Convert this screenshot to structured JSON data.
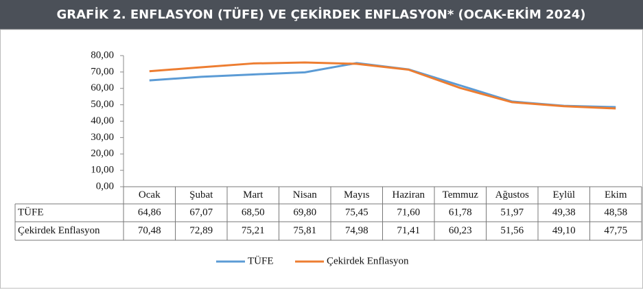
{
  "chart_data": {
    "type": "line",
    "title": "GRAFİK 2. ENFLASYON (TÜFE) VE ÇEKİRDEK ENFLASYON* (OCAK-EKİM 2024)",
    "categories": [
      "Ocak",
      "Şubat",
      "Mart",
      "Nisan",
      "Mayıs",
      "Haziran",
      "Temmuz",
      "Ağustos",
      "Eylül",
      "Ekim"
    ],
    "series": [
      {
        "name": "TÜFE",
        "color": "#5b9bd5",
        "values": [
          64.86,
          67.07,
          68.5,
          69.8,
          75.45,
          71.6,
          61.78,
          51.97,
          49.38,
          48.58
        ],
        "value_labels": [
          "64,86",
          "67,07",
          "68,50",
          "69,80",
          "75,45",
          "71,60",
          "61,78",
          "51,97",
          "49,38",
          "48,58"
        ]
      },
      {
        "name": "Çekirdek Enflasyon",
        "color": "#ed7d31",
        "values": [
          70.48,
          72.89,
          75.21,
          75.81,
          74.98,
          71.41,
          60.23,
          51.56,
          49.1,
          47.75
        ],
        "value_labels": [
          "70,48",
          "72,89",
          "75,21",
          "75,81",
          "74,98",
          "71,41",
          "60,23",
          "51,56",
          "49,10",
          "47,75"
        ]
      }
    ],
    "ylim": [
      0,
      80
    ],
    "yticks": [
      {
        "value": 0,
        "label": "0,00"
      },
      {
        "value": 10,
        "label": "10,00"
      },
      {
        "value": 20,
        "label": "20,00"
      },
      {
        "value": 30,
        "label": "30,00"
      },
      {
        "value": 40,
        "label": "40,00"
      },
      {
        "value": 50,
        "label": "50,00"
      },
      {
        "value": 60,
        "label": "60,00"
      },
      {
        "value": 70,
        "label": "70,00"
      },
      {
        "value": 80,
        "label": "80,00"
      }
    ],
    "legend": "bottom"
  }
}
